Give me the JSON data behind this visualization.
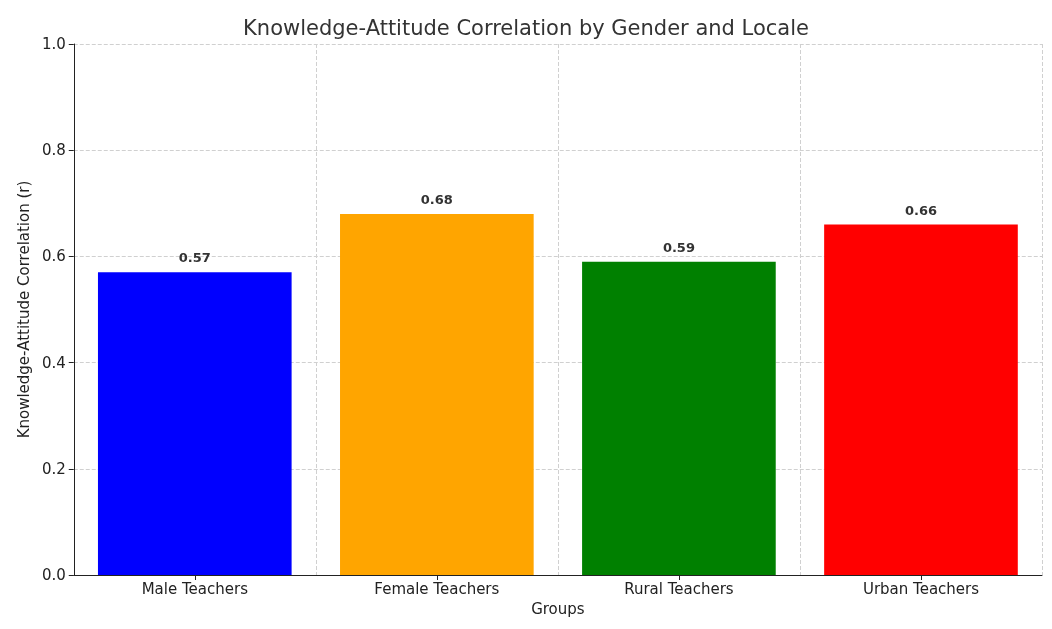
{
  "chart_data": {
    "type": "bar",
    "title": "Knowledge-Attitude Correlation by Gender and Locale",
    "xlabel": "Groups",
    "ylabel": "Knowledge-Attitude Correlation (r)",
    "categories": [
      "Male Teachers",
      "Female Teachers",
      "Rural Teachers",
      "Urban Teachers"
    ],
    "values": [
      0.57,
      0.68,
      0.59,
      0.66
    ],
    "colors": [
      "#0000ff",
      "#ffa500",
      "#008000",
      "#ff0000"
    ],
    "ylim": [
      0,
      1
    ],
    "yticks": [
      {
        "value": 0,
        "label": "0.0"
      },
      {
        "value": 0.2,
        "label": "0.2"
      },
      {
        "value": 0.4,
        "label": "0.4"
      },
      {
        "value": 0.6,
        "label": "0.6"
      },
      {
        "value": 0.8,
        "label": "0.8"
      },
      {
        "value": 1,
        "label": "1.0"
      }
    ],
    "grid": true,
    "data_labels": true
  }
}
